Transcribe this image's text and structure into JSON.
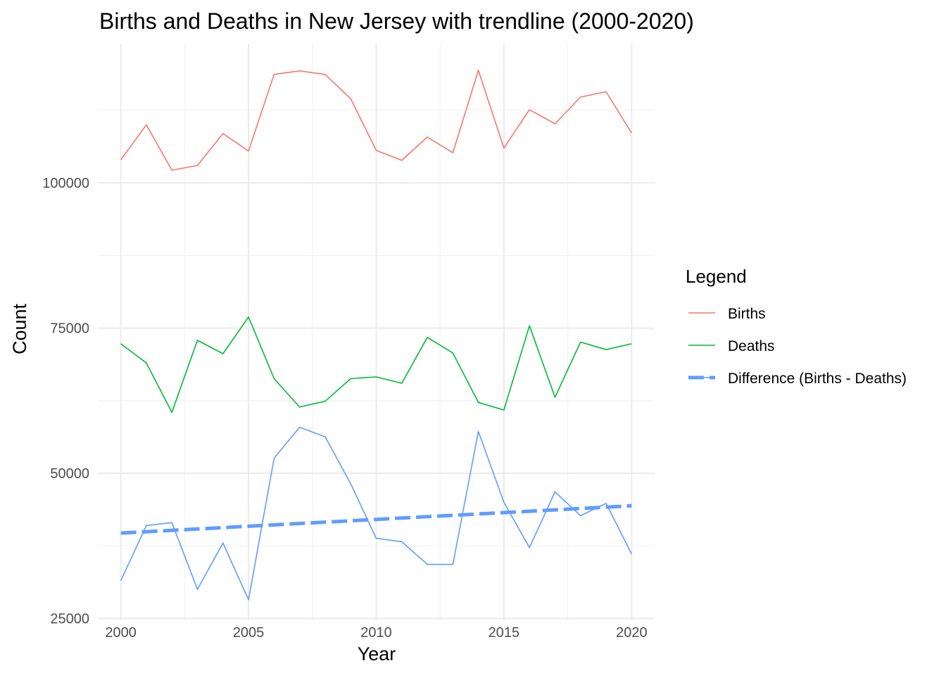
{
  "chart_data": {
    "type": "line",
    "title": "Births and Deaths in New Jersey with trendline (2000-2020)",
    "xlabel": "Year",
    "ylabel": "Count",
    "xlim": [
      1999.1,
      2020.9
    ],
    "ylim": [
      24700,
      124000
    ],
    "x_ticks": [
      2000,
      2005,
      2010,
      2015,
      2020
    ],
    "y_ticks": [
      25000,
      50000,
      75000,
      100000
    ],
    "x_minor": [
      2002.5,
      2007.5,
      2012.5,
      2017.5
    ],
    "y_minor": [
      37500,
      62500,
      87500,
      112500
    ],
    "grid": true,
    "legend": {
      "title": "Legend",
      "placement": "right"
    },
    "x": [
      2000,
      2001,
      2002,
      2003,
      2004,
      2005,
      2006,
      2007,
      2008,
      2009,
      2010,
      2011,
      2012,
      2013,
      2014,
      2015,
      2016,
      2017,
      2018,
      2019,
      2020
    ],
    "series": [
      {
        "name": "Births",
        "color": "#F8766D",
        "style": "solid",
        "values": [
          104000,
          110000,
          102200,
          103000,
          108500,
          105500,
          118700,
          119300,
          118700,
          114500,
          105600,
          103900,
          107900,
          105200,
          119400,
          106000,
          112600,
          110200,
          114800,
          115700,
          108600
        ]
      },
      {
        "name": "Deaths",
        "color": "#00BA38",
        "style": "solid",
        "values": [
          72300,
          69000,
          60500,
          72900,
          70600,
          76900,
          66300,
          61400,
          62400,
          66300,
          66600,
          65500,
          73400,
          70700,
          62200,
          60900,
          75400,
          63100,
          72600,
          71300,
          72300
        ]
      },
      {
        "name": "Difference (Births - Deaths)",
        "color": "#619CFF",
        "style": "solid",
        "values": [
          31500,
          41000,
          41500,
          30000,
          38000,
          28200,
          52600,
          57900,
          56300,
          48200,
          38800,
          38200,
          34300,
          34300,
          57200,
          45000,
          37200,
          46800,
          42700,
          44800,
          36100
        ]
      },
      {
        "name": "trend",
        "color": "#619CFF",
        "style": "dashed",
        "values": [
          39700,
          39935,
          40170,
          40405,
          40640,
          40875,
          41110,
          41345,
          41580,
          41815,
          42050,
          42285,
          42520,
          42755,
          42990,
          43225,
          43460,
          43695,
          43930,
          44165,
          44400
        ]
      }
    ]
  }
}
